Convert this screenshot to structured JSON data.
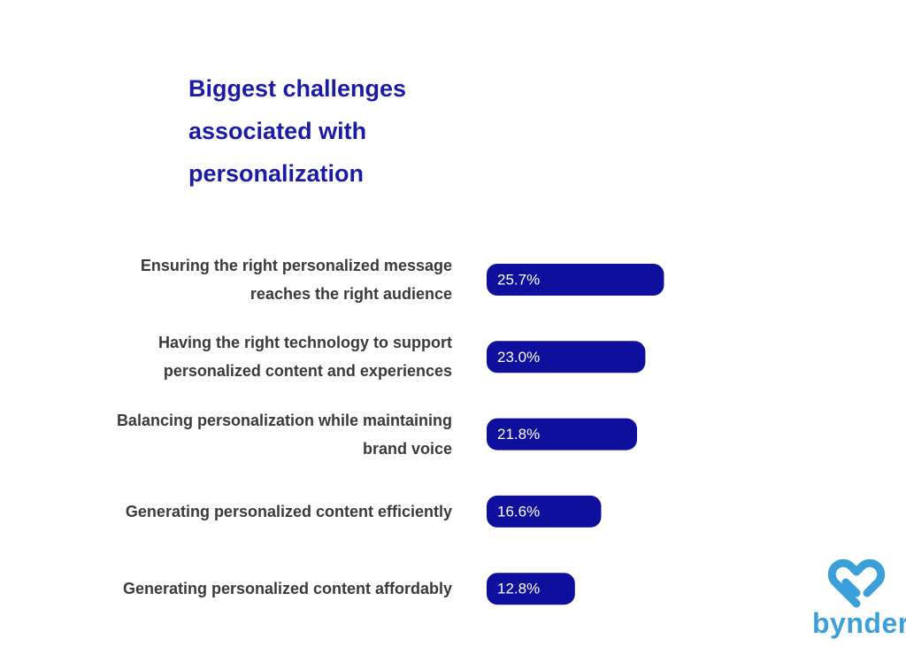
{
  "chart_data": {
    "type": "bar",
    "orientation": "horizontal",
    "title": "Biggest challenges associated with personalization",
    "categories": [
      "Ensuring the right personalized message reaches the right audience",
      "Having the right technology to support personalized content and experiences",
      "Balancing personalization while maintaining brand voice",
      "Generating personalized content efficiently",
      "Generating personalized content affordably"
    ],
    "values": [
      25.7,
      23.0,
      21.8,
      16.6,
      12.8
    ],
    "value_labels": [
      "25.7%",
      "23.0%",
      "21.8%",
      "16.6%",
      "12.8%"
    ],
    "color": "#0f0f9e"
  },
  "logo": "bynder"
}
